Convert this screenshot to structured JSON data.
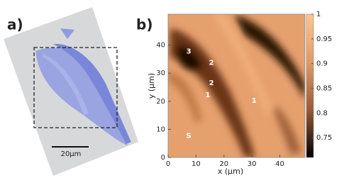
{
  "panel_a": {
    "label": "a)",
    "scale_bar": "20µm"
  },
  "chart_data": {
    "type": "heatmap",
    "label": "b)",
    "xlabel": "x (µm)",
    "ylabel": "y (µm)",
    "xlim": [
      0,
      49
    ],
    "xticks": [
      0,
      10,
      20,
      30,
      40
    ],
    "ylim": [
      0,
      51
    ],
    "yticks": [
      0,
      10,
      20,
      30,
      40
    ],
    "clim": [
      0.71,
      1
    ],
    "cticks": [
      0.75,
      0.8,
      0.85,
      0.9,
      0.95,
      1
    ],
    "colormap": [
      "#000000",
      "#9a5a36",
      "#e39a66",
      "#ffc48e"
    ],
    "annotations": [
      {
        "text": "3",
        "x": 7.4,
        "y": 37.8
      },
      {
        "text": "2",
        "x": 15.5,
        "y": 33.7
      },
      {
        "text": "2",
        "x": 15.5,
        "y": 26.5
      },
      {
        "text": "1",
        "x": 14.2,
        "y": 22.2
      },
      {
        "text": "1",
        "x": 30.8,
        "y": 20.2
      },
      {
        "text": "S",
        "x": 7.4,
        "y": 7.7
      }
    ]
  }
}
